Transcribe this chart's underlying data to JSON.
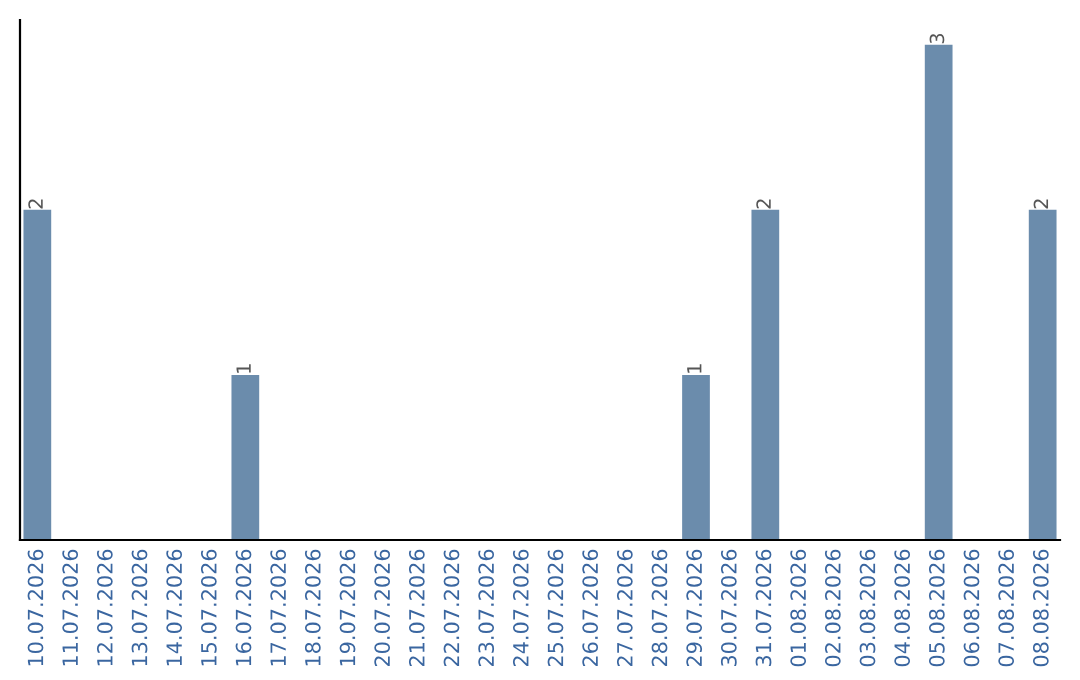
{
  "chart_data": {
    "type": "bar",
    "categories": [
      "10.07.2026",
      "11.07.2026",
      "12.07.2026",
      "13.07.2026",
      "14.07.2026",
      "15.07.2026",
      "16.07.2026",
      "17.07.2026",
      "18.07.2026",
      "19.07.2026",
      "20.07.2026",
      "21.07.2026",
      "22.07.2026",
      "23.07.2026",
      "24.07.2026",
      "25.07.2026",
      "26.07.2026",
      "27.07.2026",
      "28.07.2026",
      "29.07.2026",
      "30.07.2026",
      "31.07.2026",
      "01.08.2026",
      "02.08.2026",
      "03.08.2026",
      "04.08.2026",
      "05.08.2026",
      "06.08.2026",
      "07.08.2026",
      "08.08.2026"
    ],
    "values": [
      2,
      0,
      0,
      0,
      0,
      0,
      1,
      0,
      0,
      0,
      0,
      0,
      0,
      0,
      0,
      0,
      0,
      0,
      0,
      1,
      0,
      2,
      0,
      0,
      0,
      0,
      3,
      0,
      0,
      2
    ],
    "value_labels": [
      "2",
      null,
      null,
      null,
      null,
      null,
      "1",
      null,
      null,
      null,
      null,
      null,
      null,
      null,
      null,
      null,
      null,
      null,
      null,
      "1",
      null,
      "2",
      null,
      null,
      null,
      null,
      "3",
      null,
      null,
      "2"
    ],
    "color": "#6b8cac",
    "relative": false,
    "grid": false,
    "legend": false
  }
}
